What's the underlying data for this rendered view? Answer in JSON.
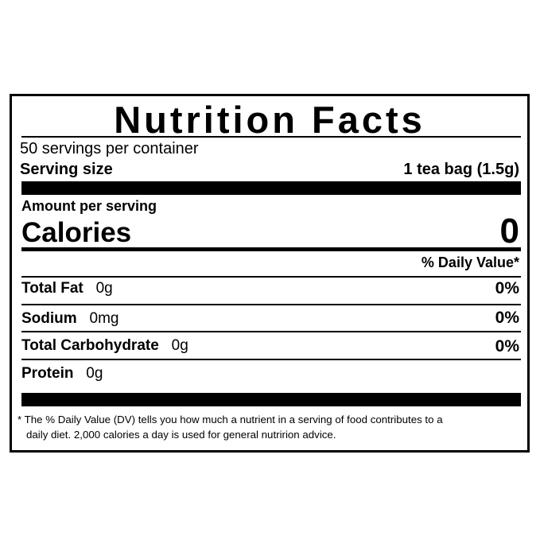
{
  "label": {
    "title": "Nutrition Facts",
    "servings": "50 servings per container",
    "serving_size": {
      "label": "Serving size",
      "value": "1 tea bag (1.5g)"
    },
    "amount_per_serving": "Amount per serving",
    "calories": {
      "label": "Calories",
      "value": "0"
    },
    "daily_value_header": "% Daily Value*",
    "rows": [
      {
        "name": "Total Fat",
        "amount": "0g",
        "dv": "0%"
      },
      {
        "name": "Sodium",
        "amount": "0mg",
        "dv": "0%"
      },
      {
        "name": "Total Carbohydrate",
        "amount": "0g",
        "dv": "0%"
      },
      {
        "name": "Protein",
        "amount": "0g"
      }
    ],
    "footnote": [
      "* The % Daily Value (DV) tells you how much a nutrient in a serving of food contributes to a",
      "daily diet. 2,000 calories a day is used for general nutririon advice."
    ]
  }
}
